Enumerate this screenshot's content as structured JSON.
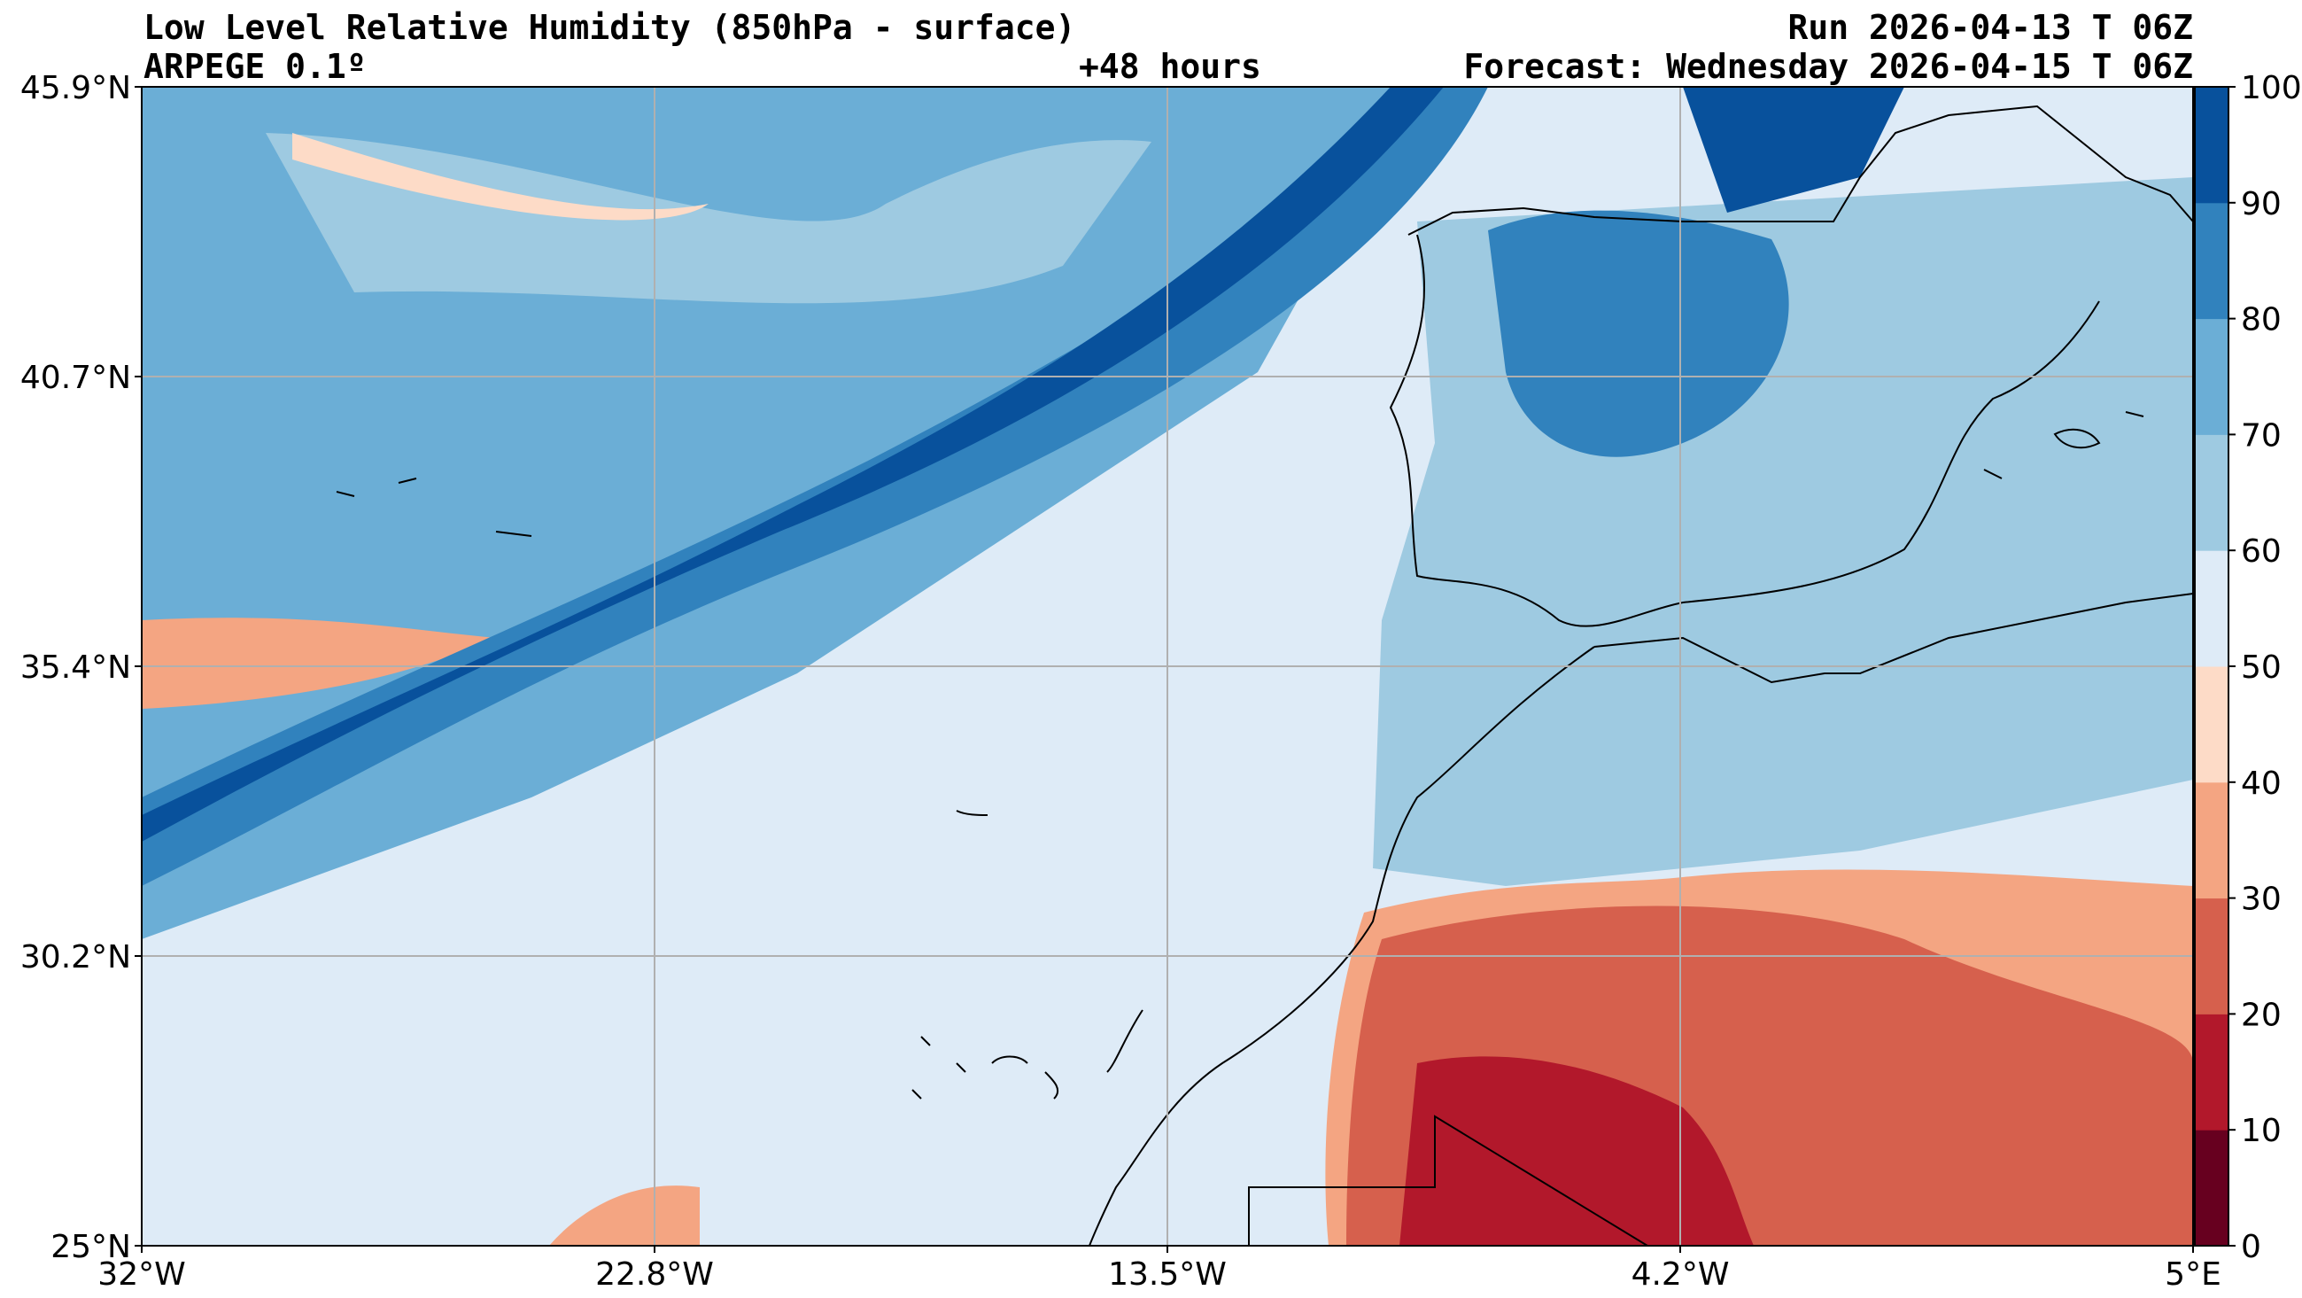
{
  "header": {
    "title": "Low Level Relative Humidity (850hPa - surface)",
    "model": "ARPEGE 0.1º",
    "lead": "+48 hours",
    "run": "Run 2026-04-13 T 06Z",
    "forecast": "Forecast: Wednesday 2026-04-15 T 06Z"
  },
  "map": {
    "lon_range": [
      -32,
      5
    ],
    "lat_range": [
      25,
      45.9
    ],
    "lon_ticks": [
      "32°W",
      "22.8°W",
      "13.5°W",
      "4.2°W",
      "5°E"
    ],
    "lat_ticks": [
      "45.9°N",
      "40.7°N",
      "35.4°N",
      "30.2°N",
      "25°N"
    ],
    "gridlines": true
  },
  "colorbar": {
    "ticks": [
      "100",
      "90",
      "80",
      "70",
      "60",
      "50",
      "40",
      "30",
      "20",
      "10",
      "0"
    ],
    "colors": [
      "#67001f",
      "#b2182b",
      "#d6604d",
      "#f4a582",
      "#fddbc7",
      "#deebf7",
      "#9ecae1",
      "#6baed6",
      "#3182bd",
      "#08519c"
    ]
  }
}
